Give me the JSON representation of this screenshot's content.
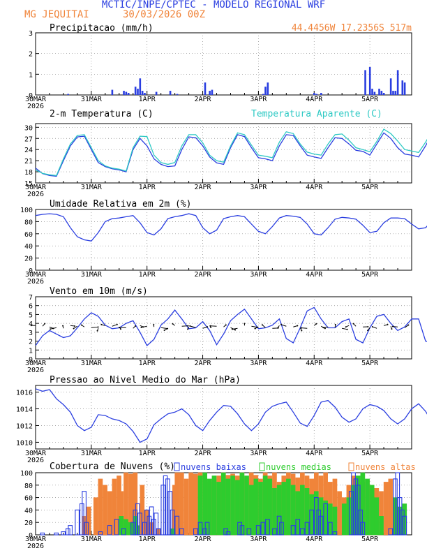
{
  "header": {
    "title": "MCTIC/INPE/CPTEC - MODELO REGIONAL WRF",
    "location": "MG JEQUITAI",
    "run": "30/03/2026 00Z",
    "coords": "44.4456W 17.2356S 517m"
  },
  "colors": {
    "blue": "#2a3ee0",
    "orange": "#f0843a",
    "cyan": "#2ec9c4",
    "green": "#2ecc2e",
    "black": "#000000"
  },
  "x_axis": {
    "labels": [
      "30MAR",
      "31MAR",
      "1APR",
      "2APR",
      "3APR",
      "4APR",
      "5APR"
    ],
    "year": "2026"
  },
  "chart_data": [
    {
      "id": "precip",
      "type": "bar",
      "title": "Precipitacao (mm/h)",
      "ylim": [
        0,
        3
      ],
      "ticks": [
        "0",
        "1",
        "2",
        "3"
      ],
      "x_hours": [
        14,
        33,
        38,
        39,
        40,
        43,
        44,
        45,
        46,
        47,
        52,
        58,
        61,
        73,
        75,
        76,
        98,
        99,
        100,
        120,
        121,
        123,
        142,
        144,
        145,
        146,
        148,
        149,
        150,
        153,
        154,
        155,
        156,
        158,
        159
      ],
      "values": [
        0.05,
        0.25,
        0.2,
        0.15,
        0.1,
        0.4,
        0.3,
        0.8,
        0.2,
        0.1,
        0.15,
        0.2,
        0.05,
        0.6,
        0.2,
        0.25,
        0.05,
        0.4,
        0.6,
        0.1,
        0.05,
        0.1,
        1.2,
        1.35,
        0.3,
        0.15,
        0.3,
        0.2,
        0.1,
        0.8,
        0.2,
        0.2,
        1.2,
        0.7,
        0.6
      ]
    },
    {
      "id": "temp",
      "type": "line",
      "title": "2-m Temperatura (C)",
      "legend": "Temperatura Aparente (C)",
      "ylim": [
        15,
        31
      ],
      "ticks": [
        "15",
        "18",
        "21",
        "24",
        "27",
        "30"
      ],
      "series": [
        {
          "name": "Temperatura",
          "color": "blue",
          "step": 3,
          "values": [
            19,
            17.5,
            17,
            16.8,
            21,
            25,
            27.4,
            27.6,
            24,
            20.5,
            19.4,
            18.8,
            18.5,
            18,
            24,
            27,
            25,
            21.5,
            20,
            19.4,
            19.6,
            24,
            27.4,
            27.2,
            25,
            22,
            20.4,
            20,
            24.5,
            28,
            27.5,
            24.5,
            21.8,
            21.5,
            21,
            25,
            28,
            27.8,
            25,
            22.5,
            22,
            21.6,
            24.5,
            27.2,
            27,
            25.5,
            23.8,
            23.5,
            22.5,
            25.5,
            28.5,
            27,
            24.5,
            22.8,
            22.5,
            22,
            25,
            28.5,
            26,
            25.5,
            23.4
          ]
        },
        {
          "name": "Temperatura Aparente",
          "color": "cyan",
          "step": 3,
          "values": [
            18.5,
            17.6,
            17.2,
            17,
            21.5,
            25.5,
            27.8,
            28,
            24.5,
            21,
            19.6,
            19,
            18.7,
            18.2,
            24.5,
            27.6,
            27.5,
            22.5,
            20.5,
            20,
            20.5,
            25,
            28,
            28,
            25.8,
            22.5,
            21,
            20.6,
            25,
            28.5,
            28,
            25.2,
            22.5,
            22.2,
            21.8,
            26,
            28.8,
            28.3,
            25.5,
            23.3,
            22.8,
            22.5,
            25.5,
            28,
            28.2,
            26.5,
            24.5,
            24,
            23.4,
            26.2,
            29.5,
            28.3,
            26.3,
            24,
            23.6,
            23.2,
            26,
            29.2,
            27.5,
            26.5,
            24.8
          ]
        }
      ]
    },
    {
      "id": "rh",
      "type": "line",
      "title": "Umidade Relativa em 2m (%)",
      "ylim": [
        0,
        100
      ],
      "ticks": [
        "0",
        "20",
        "40",
        "60",
        "80",
        "100"
      ],
      "series": [
        {
          "name": "Umidade",
          "color": "blue",
          "step": 3,
          "values": [
            90,
            92,
            93,
            92,
            88,
            70,
            55,
            50,
            48,
            62,
            80,
            85,
            86,
            88,
            90,
            78,
            62,
            58,
            68,
            85,
            88,
            90,
            93,
            90,
            70,
            60,
            66,
            85,
            88,
            90,
            88,
            76,
            64,
            60,
            72,
            86,
            90,
            89,
            87,
            76,
            60,
            58,
            70,
            84,
            87,
            86,
            84,
            74,
            62,
            64,
            78,
            86,
            86,
            85,
            76,
            68,
            70,
            82,
            82,
            83,
            88
          ]
        }
      ]
    },
    {
      "id": "wind",
      "type": "line",
      "title": "Vento em 10m (m/s)",
      "ylim": [
        0,
        7
      ],
      "ticks": [
        "0",
        "1",
        "2",
        "3",
        "4",
        "5",
        "6",
        "7"
      ],
      "series": [
        {
          "name": "Vento",
          "color": "blue",
          "step": 3,
          "values": [
            1.5,
            2.6,
            3.2,
            2.8,
            2.4,
            2.6,
            3.5,
            4.5,
            5.2,
            4.8,
            3.8,
            3.4,
            3.5,
            4,
            4.3,
            3,
            1.5,
            2.2,
            3.8,
            4.5,
            5.5,
            4.5,
            3.4,
            3.5,
            4.2,
            3.2,
            1.6,
            2.8,
            4.3,
            5,
            5.6,
            4.5,
            3.4,
            3.5,
            3.8,
            4.5,
            2.3,
            1.8,
            3.5,
            5.4,
            5.8,
            4.5,
            3.5,
            3.5,
            4.2,
            4.5,
            2.2,
            1.8,
            3.5,
            4.8,
            5,
            4,
            3.2,
            3.6,
            4.5,
            4.5,
            2,
            1.8,
            2.5,
            3.5,
            3
          ]
        }
      ],
      "barbs": "arrows"
    },
    {
      "id": "pressure",
      "type": "line",
      "title": "Pressao ao Nivel Medio do Mar (hPa)",
      "ylim": [
        1009.2,
        1016.8
      ],
      "ticks": [
        "1010",
        "1012",
        "1014",
        "1016"
      ],
      "series": [
        {
          "name": "Pressao",
          "color": "blue",
          "step": 3,
          "values": [
            1016.4,
            1016.1,
            1016.3,
            1015.2,
            1014.5,
            1013.6,
            1012,
            1011.4,
            1011.8,
            1013.3,
            1013.2,
            1012.8,
            1012.6,
            1012.2,
            1011.3,
            1010,
            1010.4,
            1012.1,
            1012.8,
            1013.4,
            1013.6,
            1014,
            1013.3,
            1012,
            1011.4,
            1012.6,
            1013.6,
            1014.4,
            1014.3,
            1013.4,
            1012.2,
            1011.4,
            1012.2,
            1013.6,
            1014.3,
            1014.6,
            1014.8,
            1013.6,
            1012.3,
            1011.9,
            1013.2,
            1014.8,
            1015,
            1014.2,
            1013,
            1012.4,
            1012.8,
            1014,
            1014.5,
            1014.3,
            1013.8,
            1012.8,
            1012.2,
            1012.8,
            1014,
            1014.6,
            1013.7,
            1012.3,
            1011.3,
            1011.7,
            1013
          ]
        }
      ]
    },
    {
      "id": "clouds",
      "type": "bar",
      "title": "Cobertura de Nuvens (%)",
      "legend": [
        "nuvens baixas",
        "nuvens medias",
        "nuvens altas"
      ],
      "ylim": [
        0,
        100
      ],
      "ticks": [
        "0",
        "20",
        "40",
        "60",
        "80",
        "100"
      ],
      "high": [
        [
          20,
          30
        ],
        [
          22,
          45
        ],
        [
          25,
          60
        ],
        [
          27,
          90
        ],
        [
          29,
          80
        ],
        [
          31,
          70
        ],
        [
          33,
          90
        ],
        [
          35,
          95
        ],
        [
          36,
          70
        ],
        [
          38,
          100
        ],
        [
          40,
          98
        ],
        [
          42,
          100
        ],
        [
          45,
          80
        ],
        [
          47,
          40
        ],
        [
          49,
          20
        ],
        [
          52,
          10
        ],
        [
          59,
          80
        ],
        [
          60,
          100
        ],
        [
          62,
          100
        ],
        [
          64,
          90
        ],
        [
          66,
          100
        ],
        [
          68,
          98
        ],
        [
          70,
          100
        ],
        [
          72,
          95
        ],
        [
          74,
          85
        ],
        [
          76,
          90
        ],
        [
          78,
          95
        ],
        [
          80,
          100
        ],
        [
          82,
          96
        ],
        [
          84,
          98
        ],
        [
          86,
          95
        ],
        [
          88,
          100
        ],
        [
          90,
          92
        ],
        [
          92,
          100
        ],
        [
          94,
          96
        ],
        [
          96,
          90
        ],
        [
          98,
          100
        ],
        [
          100,
          95
        ],
        [
          102,
          100
        ],
        [
          104,
          85
        ],
        [
          106,
          95
        ],
        [
          108,
          100
        ],
        [
          110,
          98
        ],
        [
          112,
          92
        ],
        [
          114,
          100
        ],
        [
          116,
          95
        ],
        [
          118,
          90
        ],
        [
          120,
          100
        ],
        [
          122,
          95
        ],
        [
          124,
          100
        ],
        [
          126,
          85
        ],
        [
          128,
          90
        ],
        [
          130,
          70
        ],
        [
          132,
          60
        ],
        [
          134,
          80
        ],
        [
          136,
          95
        ],
        [
          138,
          90
        ],
        [
          140,
          85
        ],
        [
          142,
          88
        ],
        [
          144,
          80
        ],
        [
          146,
          75
        ],
        [
          148,
          70
        ],
        [
          150,
          85
        ],
        [
          152,
          90
        ],
        [
          154,
          45
        ],
        [
          156,
          40
        ],
        [
          158,
          20
        ]
      ],
      "mid": [
        [
          36,
          30
        ],
        [
          38,
          25
        ],
        [
          40,
          20
        ],
        [
          42,
          30
        ],
        [
          43,
          15
        ],
        [
          58,
          10
        ],
        [
          70,
          95
        ],
        [
          72,
          100
        ],
        [
          74,
          90
        ],
        [
          76,
          95
        ],
        [
          78,
          85
        ],
        [
          80,
          100
        ],
        [
          82,
          90
        ],
        [
          84,
          95
        ],
        [
          86,
          88
        ],
        [
          88,
          100
        ],
        [
          90,
          95
        ],
        [
          92,
          80
        ],
        [
          94,
          90
        ],
        [
          96,
          85
        ],
        [
          98,
          95
        ],
        [
          100,
          90
        ],
        [
          102,
          75
        ],
        [
          104,
          80
        ],
        [
          106,
          85
        ],
        [
          108,
          90
        ],
        [
          110,
          80
        ],
        [
          112,
          70
        ],
        [
          114,
          80
        ],
        [
          116,
          75
        ],
        [
          118,
          65
        ],
        [
          120,
          70
        ],
        [
          122,
          60
        ],
        [
          124,
          55
        ],
        [
          126,
          50
        ],
        [
          128,
          45
        ],
        [
          132,
          50
        ],
        [
          134,
          60
        ],
        [
          136,
          80
        ],
        [
          138,
          95
        ],
        [
          140,
          100
        ],
        [
          142,
          90
        ],
        [
          144,
          80
        ],
        [
          146,
          60
        ],
        [
          148,
          30
        ],
        [
          154,
          60
        ],
        [
          156,
          45
        ],
        [
          158,
          50
        ]
      ],
      "low": [
        [
          2,
          3
        ],
        [
          8,
          3
        ],
        [
          11,
          5
        ],
        [
          13,
          10
        ],
        [
          14,
          15
        ],
        [
          17,
          40
        ],
        [
          19,
          50
        ],
        [
          20,
          70
        ],
        [
          21,
          20
        ],
        [
          27,
          5
        ],
        [
          31,
          15
        ],
        [
          34,
          25
        ],
        [
          37,
          10
        ],
        [
          41,
          20
        ],
        [
          42,
          40
        ],
        [
          43,
          50
        ],
        [
          44,
          35
        ],
        [
          46,
          20
        ],
        [
          47,
          40
        ],
        [
          48,
          30
        ],
        [
          49,
          45
        ],
        [
          50,
          25
        ],
        [
          51,
          35
        ],
        [
          52,
          10
        ],
        [
          54,
          80
        ],
        [
          55,
          95
        ],
        [
          56,
          90
        ],
        [
          57,
          70
        ],
        [
          58,
          40
        ],
        [
          60,
          30
        ],
        [
          62,
          10
        ],
        [
          68,
          10
        ],
        [
          70,
          20
        ],
        [
          72,
          10
        ],
        [
          73,
          20
        ],
        [
          81,
          10
        ],
        [
          82,
          5
        ],
        [
          87,
          20
        ],
        [
          88,
          15
        ],
        [
          91,
          10
        ],
        [
          95,
          15
        ],
        [
          97,
          20
        ],
        [
          99,
          25
        ],
        [
          102,
          10
        ],
        [
          104,
          30
        ],
        [
          105,
          20
        ],
        [
          110,
          15
        ],
        [
          112,
          25
        ],
        [
          114,
          10
        ],
        [
          116,
          20
        ],
        [
          118,
          40
        ],
        [
          120,
          60
        ],
        [
          121,
          40
        ],
        [
          122,
          30
        ],
        [
          124,
          50
        ],
        [
          126,
          20
        ],
        [
          128,
          5
        ],
        [
          135,
          70
        ],
        [
          136,
          100
        ],
        [
          137,
          90
        ],
        [
          138,
          80
        ],
        [
          139,
          40
        ],
        [
          140,
          20
        ],
        [
          152,
          10
        ],
        [
          154,
          90
        ],
        [
          155,
          100
        ],
        [
          156,
          60
        ],
        [
          157,
          40
        ],
        [
          158,
          30
        ]
      ]
    }
  ]
}
